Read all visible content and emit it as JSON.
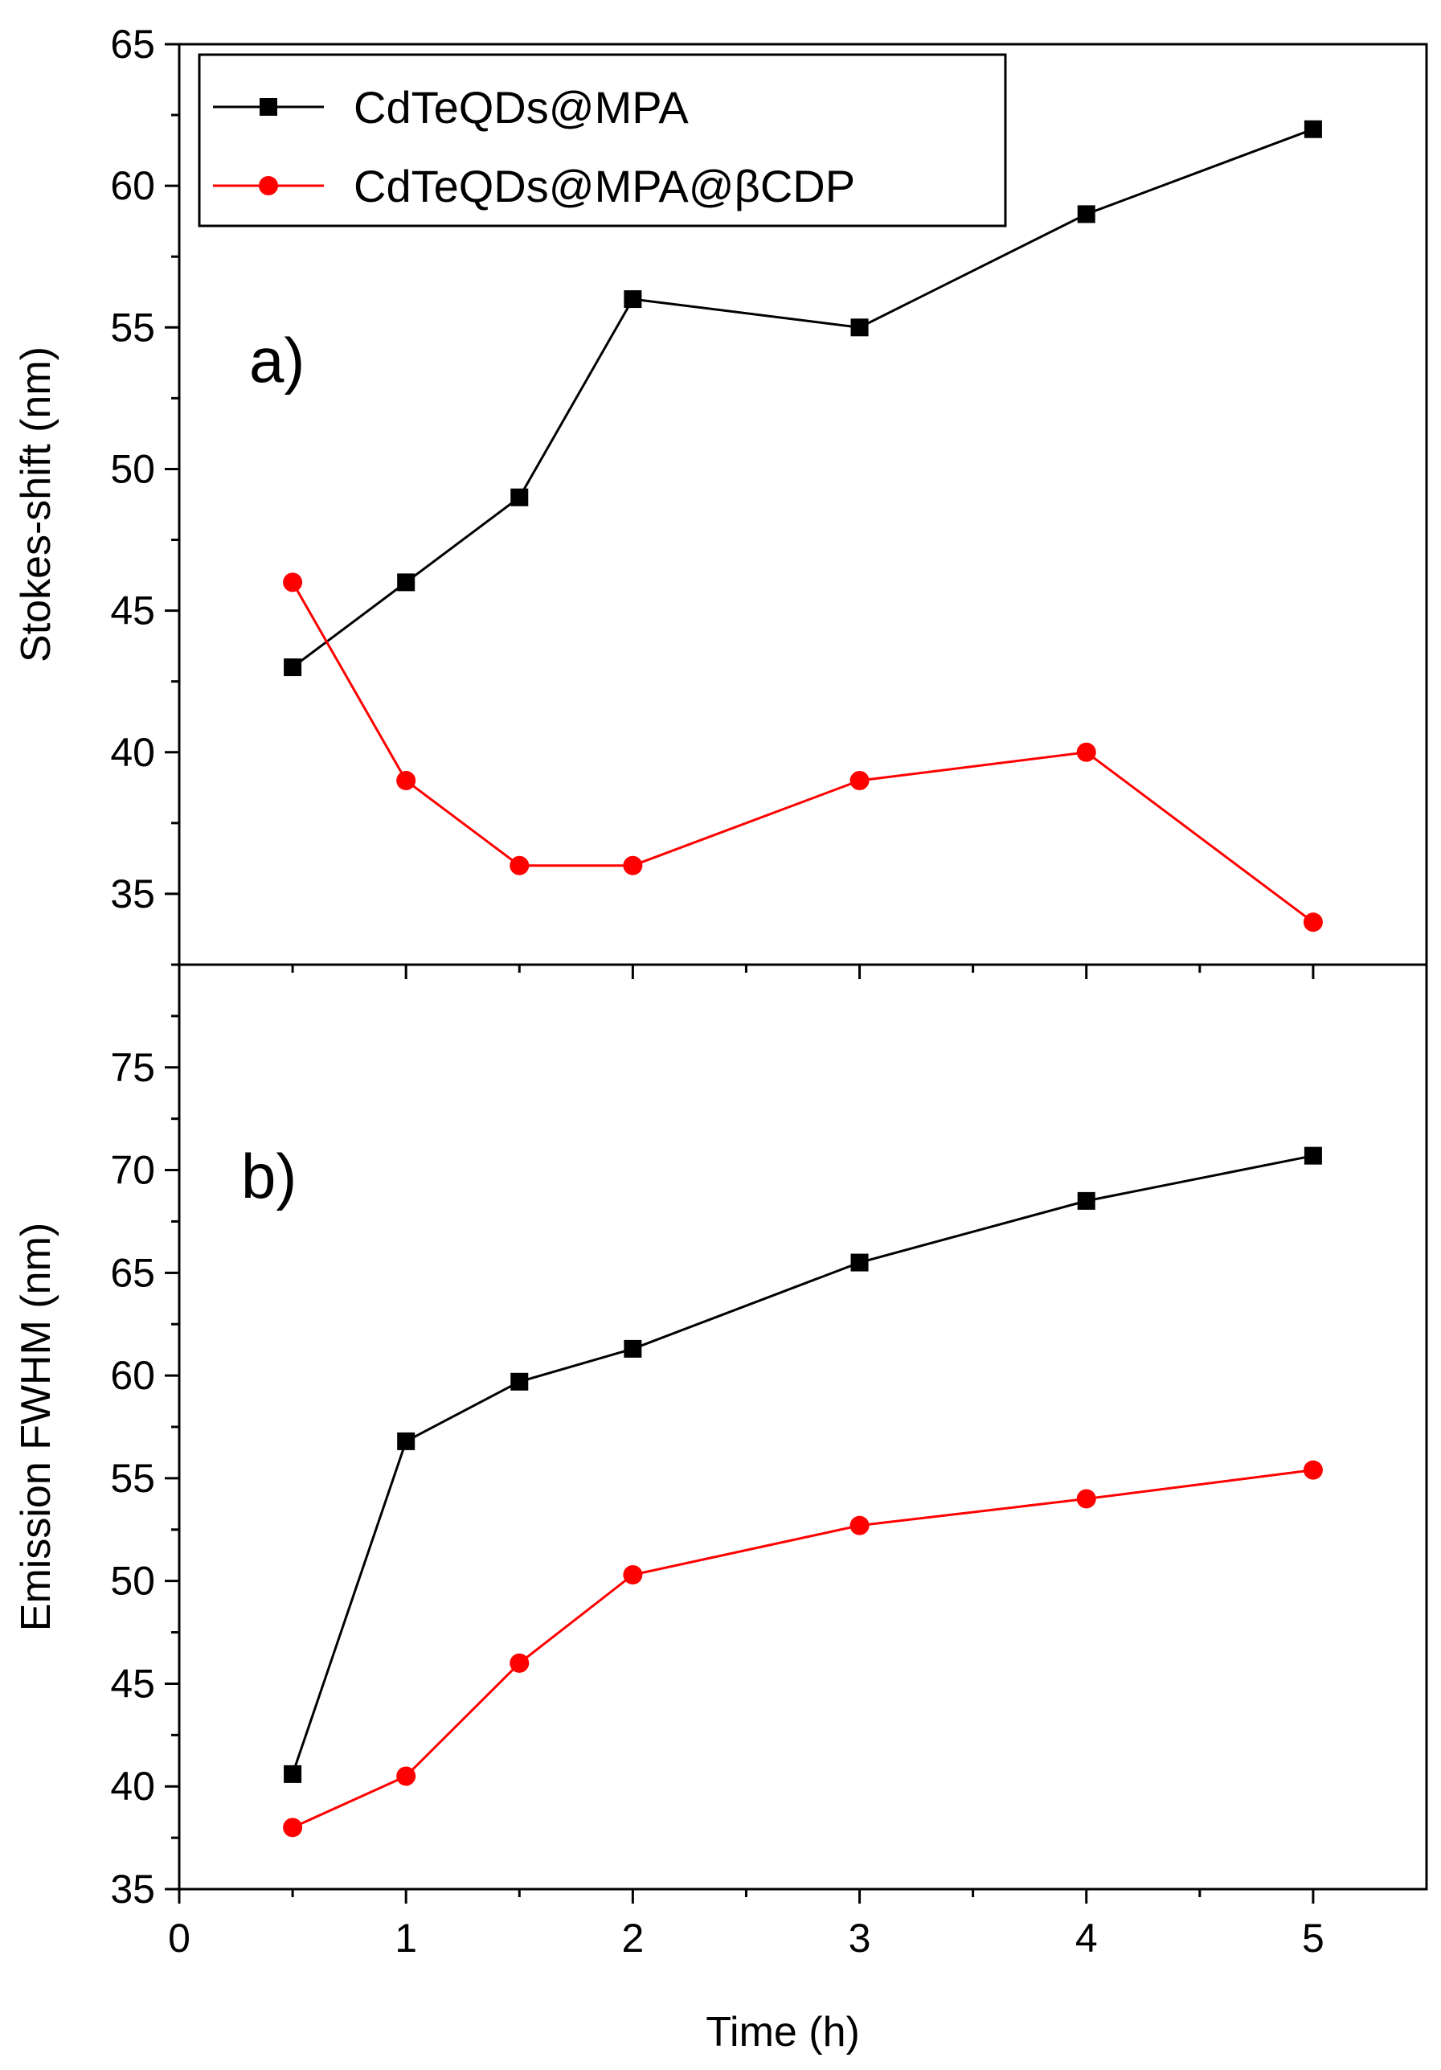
{
  "chart_data": [
    {
      "panel": "a)",
      "type": "line",
      "ylabel": "Stokes-shift (nm)",
      "xlabel": "",
      "xlim": [
        0,
        5.5
      ],
      "ylim": [
        32.5,
        65
      ],
      "x_ticks": [
        0,
        1,
        2,
        3,
        4,
        5
      ],
      "y_ticks": [
        35,
        40,
        45,
        50,
        55,
        60,
        65
      ],
      "x": [
        0.5,
        1,
        1.5,
        2,
        3,
        4,
        5
      ],
      "series": [
        {
          "name": "CdTeQDs@MPA",
          "color": "#000000",
          "marker": "square",
          "values": [
            43,
            46,
            49,
            56,
            55,
            59,
            62
          ]
        },
        {
          "name": "CdTeQDs@MPA@βCDP",
          "color": "#ff0000",
          "marker": "circle",
          "values": [
            46,
            39,
            36,
            36,
            39,
            40,
            34
          ]
        }
      ],
      "legend": "top-left"
    },
    {
      "panel": "b)",
      "type": "line",
      "ylabel": "Emission FWHM (nm)",
      "xlabel": "Time (h)",
      "xlim": [
        0,
        5.5
      ],
      "ylim": [
        35,
        80
      ],
      "x_ticks": [
        0,
        1,
        2,
        3,
        4,
        5
      ],
      "y_ticks": [
        35,
        40,
        45,
        50,
        55,
        60,
        65,
        70,
        75
      ],
      "x": [
        0.5,
        1,
        1.5,
        2,
        3,
        4,
        5
      ],
      "series": [
        {
          "name": "CdTeQDs@MPA",
          "color": "#000000",
          "marker": "square",
          "values": [
            40.6,
            56.8,
            59.7,
            61.3,
            65.5,
            68.5,
            70.7
          ]
        },
        {
          "name": "CdTeQDs@MPA@βCDP",
          "color": "#ff0000",
          "marker": "circle",
          "values": [
            38,
            40.5,
            46,
            50.3,
            52.7,
            54,
            55.4
          ]
        }
      ]
    }
  ]
}
